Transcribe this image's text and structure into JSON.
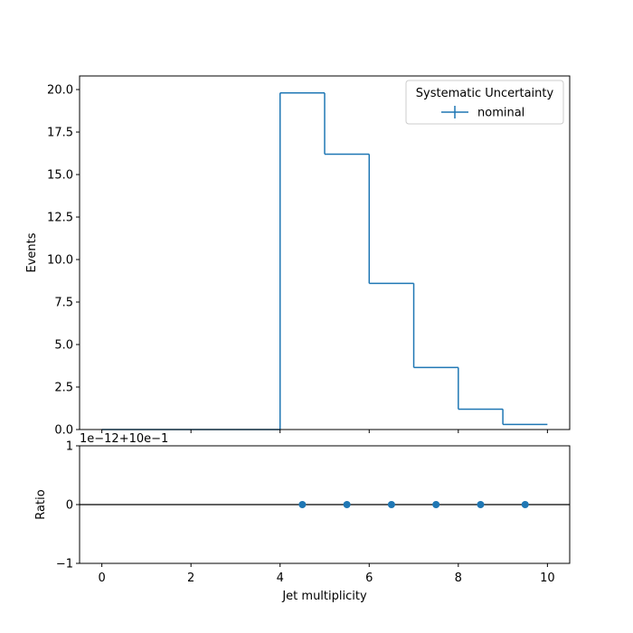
{
  "chart_data": [
    {
      "type": "step",
      "panel": "main",
      "ylabel": "Events",
      "xlim": [
        -0.5,
        10.5
      ],
      "ylim": [
        0,
        20.8
      ],
      "y_ticks": [
        0.0,
        2.5,
        5.0,
        7.5,
        10.0,
        12.5,
        15.0,
        17.5,
        20.0
      ],
      "y_tick_labels": [
        "0.0",
        "2.5",
        "5.0",
        "7.5",
        "10.0",
        "12.5",
        "15.0",
        "17.5",
        "20.0"
      ],
      "bin_edges": [
        0,
        1,
        2,
        3,
        4,
        5,
        6,
        7,
        8,
        9,
        10
      ],
      "series": [
        {
          "name": "nominal",
          "color": "#1f77b4",
          "values": [
            0,
            0,
            0,
            0,
            19.8,
            16.2,
            8.6,
            3.65,
            1.2,
            0.3
          ]
        }
      ],
      "legend": {
        "title": "Systematic Uncertainty",
        "position": "top-right"
      },
      "grid": false
    },
    {
      "type": "scatter",
      "panel": "ratio",
      "ylabel": "Ratio",
      "xlabel": "Jet multiplicity",
      "xlim": [
        -0.5,
        10.5
      ],
      "ylim": [
        -1,
        1
      ],
      "y_ticks": [
        -1,
        0,
        1
      ],
      "y_tick_labels": [
        "−1",
        "0",
        "1"
      ],
      "x_ticks": [
        0,
        2,
        4,
        6,
        8,
        10
      ],
      "x_tick_labels": [
        "0",
        "2",
        "4",
        "6",
        "8",
        "10"
      ],
      "offset_text": "1e−12+10e−1",
      "reference_line": 0,
      "series": [
        {
          "name": "nominal",
          "color": "#1f77b4",
          "x": [
            4.5,
            5.5,
            6.5,
            7.5,
            8.5,
            9.5
          ],
          "y": [
            0,
            0,
            0,
            0,
            0,
            0
          ]
        }
      ],
      "grid": false
    }
  ]
}
